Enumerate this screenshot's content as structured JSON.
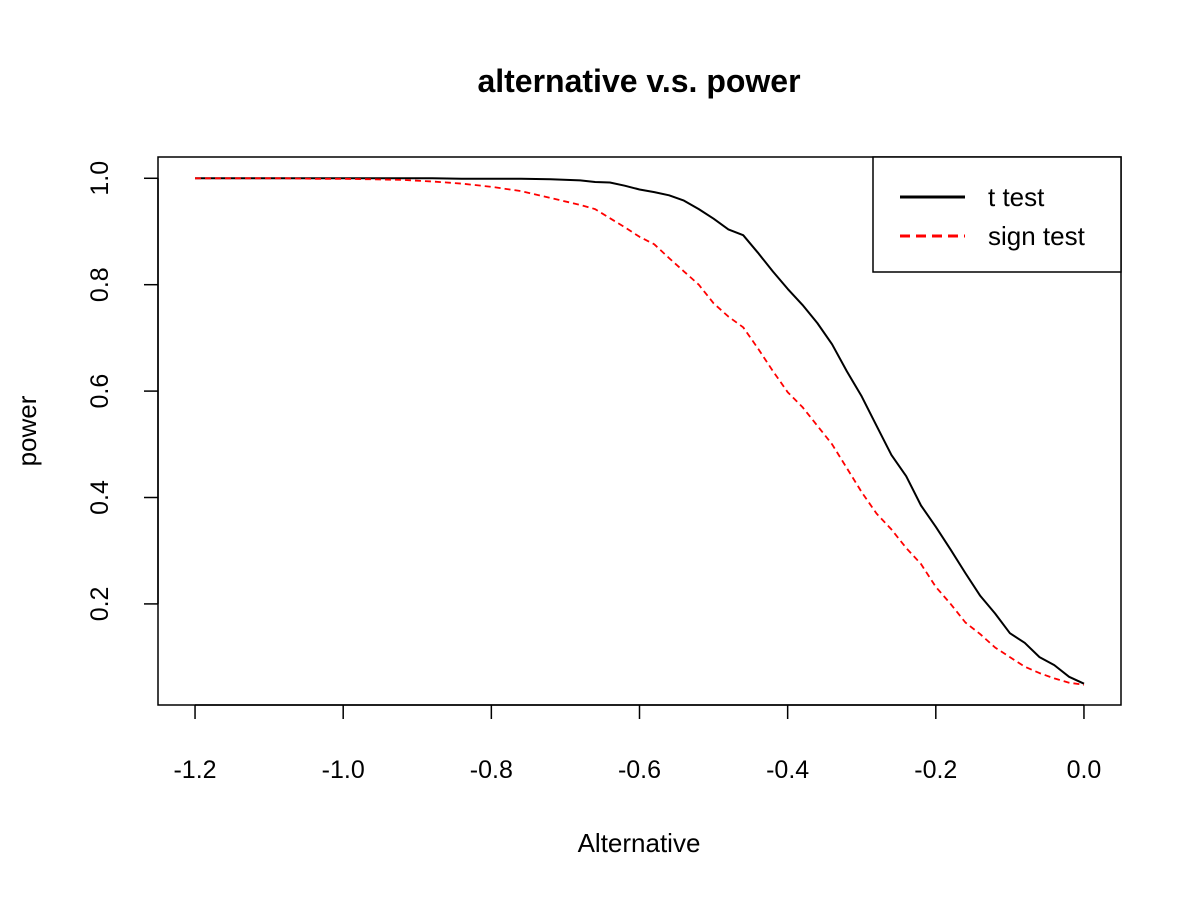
{
  "chart_data": {
    "type": "line",
    "title": "alternative v.s. power",
    "xlabel": "Alternative",
    "ylabel": "power",
    "xlim": [
      -1.25,
      0.05
    ],
    "ylim": [
      0.01,
      1.04
    ],
    "x_ticks": [
      -1.2,
      -1.0,
      -0.8,
      -0.6,
      -0.4,
      -0.2,
      0.0
    ],
    "x_tick_labels": [
      "-1.2",
      "-1.0",
      "-0.8",
      "-0.6",
      "-0.4",
      "-0.2",
      "0.0"
    ],
    "y_ticks": [
      0.2,
      0.4,
      0.6,
      0.8,
      1.0
    ],
    "y_tick_labels": [
      "0.2",
      "0.4",
      "0.6",
      "0.8",
      "1.0"
    ],
    "grid": false,
    "legend_position": "top-right",
    "x": [
      -1.2,
      -1.16,
      -1.12,
      -1.08,
      -1.04,
      -1.0,
      -0.96,
      -0.92,
      -0.88,
      -0.84,
      -0.8,
      -0.76,
      -0.72,
      -0.68,
      -0.66,
      -0.64,
      -0.62,
      -0.6,
      -0.58,
      -0.56,
      -0.54,
      -0.52,
      -0.5,
      -0.48,
      -0.46,
      -0.44,
      -0.42,
      -0.4,
      -0.38,
      -0.36,
      -0.34,
      -0.32,
      -0.3,
      -0.28,
      -0.26,
      -0.24,
      -0.22,
      -0.2,
      -0.18,
      -0.16,
      -0.14,
      -0.12,
      -0.1,
      -0.08,
      -0.06,
      -0.04,
      -0.02,
      0.0
    ],
    "series": [
      {
        "name": "t test",
        "color": "#000000",
        "style": "solid",
        "values": [
          1.0,
          1.0,
          1.0,
          1.0,
          1.0,
          1.0,
          1.0,
          1.0,
          1.0,
          0.999,
          0.999,
          0.999,
          0.998,
          0.996,
          0.993,
          0.992,
          0.986,
          0.979,
          0.974,
          0.968,
          0.958,
          0.942,
          0.924,
          0.904,
          0.893,
          0.86,
          0.825,
          0.792,
          0.762,
          0.728,
          0.688,
          0.637,
          0.59,
          0.535,
          0.48,
          0.44,
          0.385,
          0.345,
          0.302,
          0.258,
          0.215,
          0.182,
          0.145,
          0.127,
          0.1,
          0.085,
          0.063,
          0.05
        ]
      },
      {
        "name": "sign test",
        "color": "#ff0000",
        "style": "dashed",
        "values": [
          1.0,
          1.0,
          1.0,
          1.0,
          0.999,
          0.999,
          0.998,
          0.997,
          0.994,
          0.99,
          0.984,
          0.976,
          0.963,
          0.95,
          0.942,
          0.925,
          0.908,
          0.89,
          0.876,
          0.85,
          0.825,
          0.8,
          0.765,
          0.74,
          0.72,
          0.68,
          0.638,
          0.598,
          0.57,
          0.535,
          0.5,
          0.455,
          0.41,
          0.37,
          0.34,
          0.305,
          0.275,
          0.232,
          0.2,
          0.165,
          0.143,
          0.118,
          0.1,
          0.082,
          0.07,
          0.06,
          0.052,
          0.048
        ]
      }
    ]
  }
}
